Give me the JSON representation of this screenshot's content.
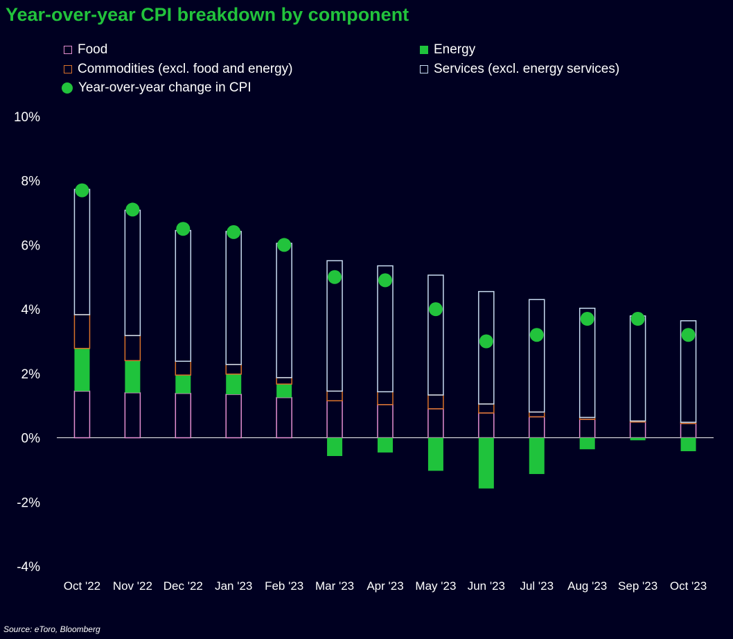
{
  "title": "Year-over-year CPI breakdown by component",
  "source": "Source: eToro, Bloomberg",
  "colors": {
    "background": "#000021",
    "title": "#22c33c",
    "food": "#e48fd1",
    "energy": "#1fc33c",
    "commodities": "#d9722a",
    "services": "#c8dcf0",
    "cpi_dot": "#22c33c"
  },
  "legend": {
    "food": "Food",
    "energy": "Energy",
    "commodities": "Commodities (excl. food and energy)",
    "services": "Services (excl. energy services)",
    "cpi": "Year-over-year change in CPI"
  },
  "chart_data": {
    "type": "bar",
    "stacked": true,
    "categories": [
      "Oct '22",
      "Nov '22",
      "Dec '22",
      "Jan '23",
      "Feb '23",
      "Mar '23",
      "Apr '23",
      "May '23",
      "Jun '23",
      "Jul '23",
      "Aug '23",
      "Sep '23",
      "Oct '23"
    ],
    "series": [
      {
        "name": "Food",
        "type": "bar",
        "values": [
          1.45,
          1.4,
          1.38,
          1.35,
          1.25,
          1.15,
          1.03,
          0.9,
          0.77,
          0.65,
          0.57,
          0.49,
          0.44
        ]
      },
      {
        "name": "Energy",
        "type": "bar",
        "values": [
          1.33,
          1.0,
          0.57,
          0.63,
          0.42,
          -0.57,
          -0.46,
          -1.03,
          -1.58,
          -1.13,
          -0.36,
          -0.08,
          -0.42
        ]
      },
      {
        "name": "Commodities (excl. food and energy)",
        "type": "bar",
        "values": [
          1.05,
          0.78,
          0.43,
          0.3,
          0.2,
          0.3,
          0.4,
          0.43,
          0.28,
          0.15,
          0.06,
          0.03,
          0.04
        ]
      },
      {
        "name": "Services (excl. energy services)",
        "type": "bar",
        "values": [
          3.9,
          3.9,
          4.07,
          4.14,
          4.18,
          4.06,
          3.92,
          3.73,
          3.5,
          3.5,
          3.4,
          3.27,
          3.16
        ]
      },
      {
        "name": "Year-over-year change in CPI",
        "type": "scatter",
        "values": [
          7.7,
          7.1,
          6.5,
          6.4,
          6.0,
          5.0,
          4.9,
          4.0,
          3.0,
          3.2,
          3.7,
          3.7,
          3.2
        ]
      }
    ],
    "yticks": [
      "10%",
      "8%",
      "6%",
      "4%",
      "2%",
      "0%",
      "-2%",
      "-4%"
    ],
    "ylim": [
      -4,
      10
    ],
    "xlabel": "",
    "ylabel": "",
    "grid": false,
    "legend_position": "top"
  }
}
